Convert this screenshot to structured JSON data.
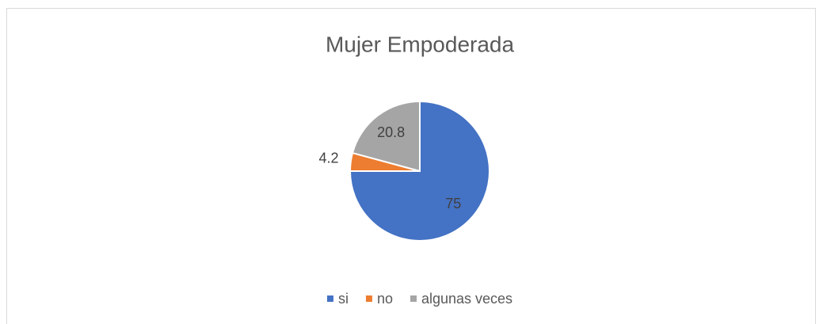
{
  "chart_data": {
    "type": "pie",
    "title": "Mujer Empoderada",
    "categories": [
      "si",
      "no",
      "algunas veces"
    ],
    "values": [
      75,
      4.2,
      20.8
    ],
    "colors": [
      "#4472c4",
      "#ed7d31",
      "#a5a5a5"
    ],
    "legend": "bottom"
  }
}
